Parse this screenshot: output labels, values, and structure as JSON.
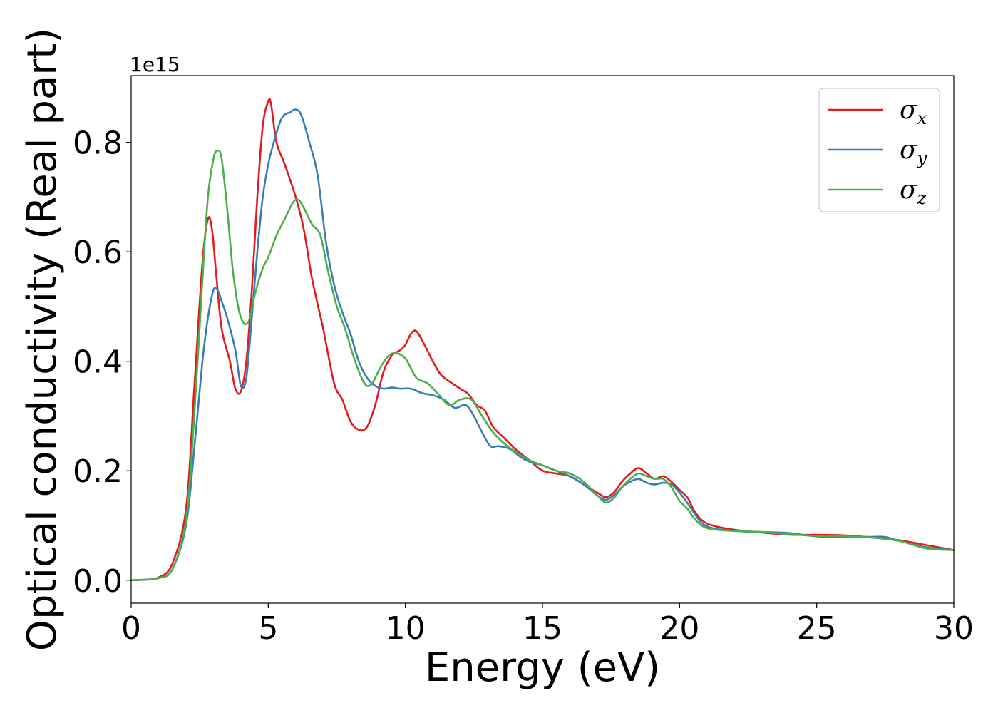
{
  "chart_data": {
    "type": "line",
    "title": "",
    "xlabel": "Energy (eV)",
    "ylabel": "Optical conductivity (Real part)",
    "y_offset_label": "1e15",
    "xlim": [
      0,
      30
    ],
    "ylim": [
      -0.042,
      0.922
    ],
    "xticks": [
      0,
      5,
      10,
      15,
      20,
      25,
      30
    ],
    "yticks": [
      0.0,
      0.2,
      0.4,
      0.6,
      0.8
    ],
    "xtick_labels": [
      "0",
      "5",
      "10",
      "15",
      "20",
      "25",
      "30"
    ],
    "ytick_labels": [
      "0.0",
      "0.2",
      "0.4",
      "0.6",
      "0.8"
    ],
    "grid": false,
    "legend_position": "top-right",
    "series": [
      {
        "name": "σx",
        "symbol": "σ",
        "subscript": "x",
        "color": "#e41a1c",
        "x": [
          0,
          0.5,
          1.0,
          1.5,
          2.0,
          2.3,
          2.6,
          2.8,
          2.95,
          3.1,
          3.3,
          3.6,
          3.8,
          4.0,
          4.2,
          4.4,
          4.6,
          4.8,
          5.0,
          5.1,
          5.3,
          5.6,
          6.0,
          6.3,
          6.6,
          7.0,
          7.4,
          7.7,
          8.0,
          8.3,
          8.6,
          8.9,
          9.2,
          9.5,
          9.8,
          10.0,
          10.2,
          10.4,
          10.7,
          11.0,
          11.3,
          11.7,
          12.0,
          12.3,
          12.6,
          12.9,
          13.2,
          13.6,
          14.0,
          14.5,
          15.0,
          15.5,
          16.0,
          16.5,
          17.0,
          17.3,
          17.6,
          17.9,
          18.2,
          18.5,
          18.8,
          19.1,
          19.4,
          19.7,
          20.0,
          20.3,
          20.5,
          20.8,
          21.2,
          22.0,
          23.0,
          24.0,
          25.0,
          26.0,
          27.0,
          28.0,
          29.0,
          30.0
        ],
        "y": [
          0.0,
          0.001,
          0.005,
          0.03,
          0.13,
          0.35,
          0.58,
          0.66,
          0.64,
          0.56,
          0.46,
          0.4,
          0.35,
          0.345,
          0.4,
          0.53,
          0.7,
          0.83,
          0.875,
          0.87,
          0.8,
          0.76,
          0.7,
          0.64,
          0.55,
          0.46,
          0.36,
          0.33,
          0.29,
          0.275,
          0.28,
          0.32,
          0.38,
          0.41,
          0.42,
          0.43,
          0.45,
          0.455,
          0.43,
          0.4,
          0.375,
          0.36,
          0.35,
          0.34,
          0.32,
          0.31,
          0.28,
          0.26,
          0.24,
          0.22,
          0.2,
          0.195,
          0.19,
          0.175,
          0.16,
          0.152,
          0.16,
          0.18,
          0.195,
          0.205,
          0.195,
          0.185,
          0.19,
          0.18,
          0.165,
          0.15,
          0.13,
          0.11,
          0.1,
          0.092,
          0.087,
          0.083,
          0.083,
          0.082,
          0.078,
          0.073,
          0.064,
          0.055
        ]
      },
      {
        "name": "σy",
        "symbol": "σ",
        "subscript": "y",
        "color": "#377eb8",
        "x": [
          0,
          0.5,
          1.0,
          1.5,
          2.0,
          2.3,
          2.6,
          2.8,
          3.0,
          3.15,
          3.3,
          3.5,
          3.8,
          4.0,
          4.2,
          4.4,
          4.6,
          4.8,
          5.0,
          5.2,
          5.5,
          5.8,
          6.0,
          6.2,
          6.5,
          6.8,
          7.1,
          7.4,
          7.7,
          8.0,
          8.3,
          8.6,
          8.9,
          9.2,
          9.5,
          9.8,
          10.2,
          10.6,
          11.0,
          11.4,
          11.8,
          12.2,
          12.5,
          12.8,
          13.1,
          13.4,
          13.8,
          14.2,
          14.6,
          15.0,
          15.5,
          16.0,
          16.5,
          17.0,
          17.3,
          17.6,
          17.9,
          18.2,
          18.5,
          18.8,
          19.1,
          19.4,
          19.7,
          20.0,
          20.3,
          20.5,
          20.8,
          21.2,
          22.0,
          23.0,
          24.0,
          25.0,
          26.0,
          27.0,
          27.5,
          28.0,
          29.0,
          30.0
        ],
        "y": [
          0.0,
          0.001,
          0.004,
          0.02,
          0.1,
          0.24,
          0.4,
          0.48,
          0.53,
          0.53,
          0.51,
          0.48,
          0.42,
          0.355,
          0.37,
          0.48,
          0.6,
          0.7,
          0.76,
          0.8,
          0.845,
          0.855,
          0.86,
          0.85,
          0.8,
          0.74,
          0.62,
          0.54,
          0.49,
          0.45,
          0.4,
          0.37,
          0.355,
          0.35,
          0.352,
          0.35,
          0.35,
          0.342,
          0.338,
          0.33,
          0.315,
          0.32,
          0.3,
          0.27,
          0.245,
          0.245,
          0.24,
          0.225,
          0.215,
          0.21,
          0.2,
          0.19,
          0.175,
          0.155,
          0.147,
          0.155,
          0.17,
          0.18,
          0.185,
          0.178,
          0.175,
          0.178,
          0.175,
          0.16,
          0.14,
          0.125,
          0.105,
          0.095,
          0.09,
          0.088,
          0.086,
          0.08,
          0.079,
          0.079,
          0.079,
          0.072,
          0.06,
          0.055
        ]
      },
      {
        "name": "σz",
        "symbol": "σ",
        "subscript": "z",
        "color": "#4daf4a",
        "x": [
          0,
          0.5,
          1.0,
          1.5,
          2.0,
          2.3,
          2.6,
          2.8,
          3.0,
          3.15,
          3.3,
          3.5,
          3.7,
          3.9,
          4.1,
          4.3,
          4.5,
          4.8,
          5.0,
          5.3,
          5.6,
          5.9,
          6.1,
          6.3,
          6.6,
          6.9,
          7.2,
          7.5,
          7.8,
          8.1,
          8.4,
          8.6,
          8.8,
          9.0,
          9.3,
          9.6,
          10.0,
          10.4,
          10.8,
          11.2,
          11.6,
          12.0,
          12.4,
          12.8,
          13.2,
          13.6,
          14.0,
          14.5,
          15.0,
          15.5,
          16.0,
          16.5,
          17.0,
          17.3,
          17.6,
          17.9,
          18.2,
          18.5,
          18.8,
          19.1,
          19.4,
          19.7,
          20.0,
          20.3,
          20.5,
          20.8,
          21.2,
          22.0,
          23.0,
          24.0,
          25.0,
          26.0,
          27.0,
          28.0,
          29.0,
          30.0
        ],
        "y": [
          0.0,
          0.001,
          0.004,
          0.02,
          0.11,
          0.3,
          0.55,
          0.7,
          0.77,
          0.785,
          0.77,
          0.68,
          0.57,
          0.5,
          0.47,
          0.475,
          0.52,
          0.57,
          0.59,
          0.63,
          0.66,
          0.69,
          0.695,
          0.68,
          0.65,
          0.63,
          0.56,
          0.5,
          0.46,
          0.41,
          0.37,
          0.355,
          0.36,
          0.38,
          0.405,
          0.415,
          0.405,
          0.37,
          0.36,
          0.34,
          0.32,
          0.33,
          0.33,
          0.3,
          0.27,
          0.25,
          0.235,
          0.22,
          0.21,
          0.2,
          0.195,
          0.18,
          0.155,
          0.142,
          0.15,
          0.17,
          0.185,
          0.195,
          0.19,
          0.185,
          0.185,
          0.17,
          0.145,
          0.13,
          0.115,
          0.1,
          0.093,
          0.09,
          0.088,
          0.084,
          0.081,
          0.08,
          0.078,
          0.072,
          0.058,
          0.055
        ]
      }
    ]
  }
}
